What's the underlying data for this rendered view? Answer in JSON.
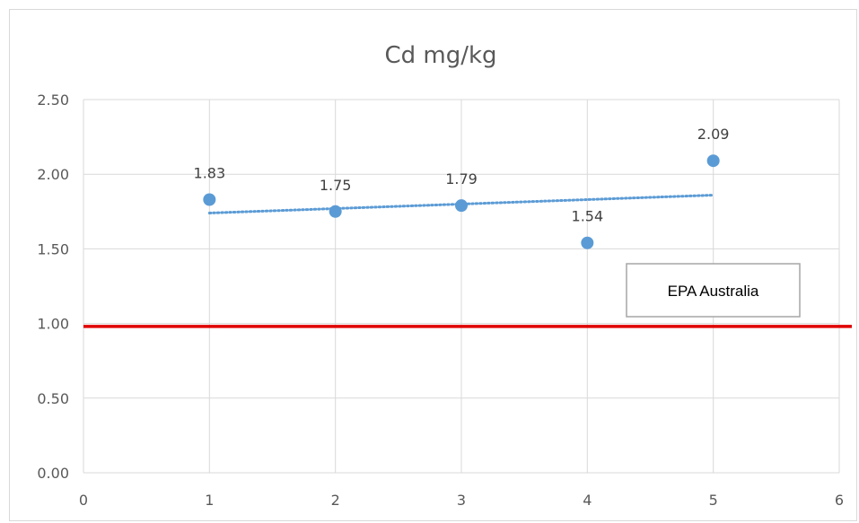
{
  "chart_data": {
    "type": "scatter",
    "title": "Cd  mg/kg",
    "xlabel": "",
    "ylabel": "",
    "xlim": [
      0,
      6
    ],
    "ylim": [
      0,
      2.5
    ],
    "x_ticks": [
      "0",
      "1",
      "2",
      "3",
      "4",
      "5",
      "6"
    ],
    "y_ticks": [
      "0.00",
      "0.50",
      "1.00",
      "1.50",
      "2.00",
      "2.50"
    ],
    "grid": "vertical and horizontal major gridlines",
    "series": [
      {
        "x": [
          1,
          2,
          3,
          4,
          5
        ],
        "y": [
          1.83,
          1.75,
          1.79,
          1.54,
          2.09
        ],
        "labels": [
          "1.83",
          "1.75",
          "1.79",
          "1.54",
          "2.09"
        ],
        "color": "#5b9bd5"
      }
    ],
    "trendline": {
      "type": "linear",
      "style": "dotted",
      "color": "#5b9bd5",
      "x": [
        1,
        5
      ],
      "y": [
        1.74,
        1.86
      ]
    },
    "reference_line": {
      "y": 0.98,
      "color": "#e00000"
    },
    "annotation": {
      "text": "EPA Australia"
    }
  }
}
